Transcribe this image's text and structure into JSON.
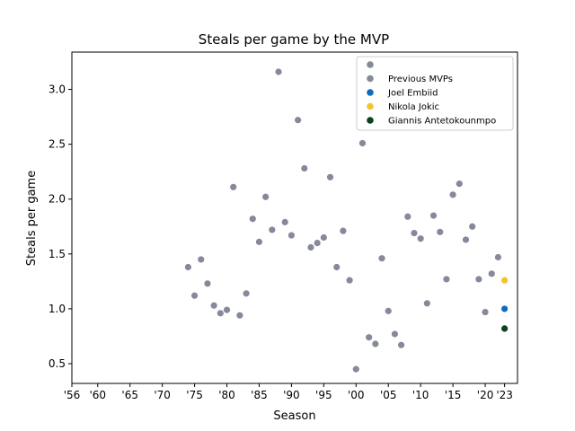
{
  "chart_data": {
    "type": "scatter",
    "title": "Steals per game by the MVP",
    "xlabel": "Season",
    "ylabel": "Steals per game",
    "xlim": [
      1956,
      2025
    ],
    "ylim": [
      0.32,
      3.34
    ],
    "x_ticks": [
      {
        "value": 1956,
        "label": "'56"
      },
      {
        "value": 1960,
        "label": "'60"
      },
      {
        "value": 1965,
        "label": "'65"
      },
      {
        "value": 1970,
        "label": "'70"
      },
      {
        "value": 1975,
        "label": "'75"
      },
      {
        "value": 1980,
        "label": "'80"
      },
      {
        "value": 1985,
        "label": "'85"
      },
      {
        "value": 1990,
        "label": "'90"
      },
      {
        "value": 1995,
        "label": "'95"
      },
      {
        "value": 2000,
        "label": "'00"
      },
      {
        "value": 2005,
        "label": "'05"
      },
      {
        "value": 2010,
        "label": "'10"
      },
      {
        "value": 2015,
        "label": "'15"
      },
      {
        "value": 2020,
        "label": "'20"
      },
      {
        "value": 2023,
        "label": "'23"
      }
    ],
    "y_ticks": [
      {
        "value": 0.5,
        "label": "0.5"
      },
      {
        "value": 1.0,
        "label": "1.0"
      },
      {
        "value": 1.5,
        "label": "1.5"
      },
      {
        "value": 2.0,
        "label": "2.0"
      },
      {
        "value": 2.5,
        "label": "2.5"
      },
      {
        "value": 3.0,
        "label": "3.0"
      }
    ],
    "grid": false,
    "legend_position": "top-right",
    "series": [
      {
        "name": "",
        "color": "#848a9a",
        "points": []
      },
      {
        "name": "Previous MVPs",
        "color": "#848a9a",
        "points": [
          [
            1974,
            1.38
          ],
          [
            1975,
            1.12
          ],
          [
            1976,
            1.45
          ],
          [
            1977,
            1.23
          ],
          [
            1978,
            1.03
          ],
          [
            1979,
            0.96
          ],
          [
            1980,
            0.99
          ],
          [
            1981,
            2.11
          ],
          [
            1982,
            0.94
          ],
          [
            1983,
            1.14
          ],
          [
            1984,
            1.82
          ],
          [
            1985,
            1.61
          ],
          [
            1986,
            2.02
          ],
          [
            1987,
            1.72
          ],
          [
            1988,
            3.16
          ],
          [
            1989,
            1.79
          ],
          [
            1990,
            1.67
          ],
          [
            1991,
            2.72
          ],
          [
            1992,
            2.28
          ],
          [
            1993,
            1.56
          ],
          [
            1994,
            1.6
          ],
          [
            1995,
            1.65
          ],
          [
            1996,
            2.2
          ],
          [
            1997,
            1.38
          ],
          [
            1998,
            1.71
          ],
          [
            1999,
            1.26
          ],
          [
            2000,
            0.45
          ],
          [
            2001,
            2.51
          ],
          [
            2002,
            0.74
          ],
          [
            2003,
            0.68
          ],
          [
            2004,
            1.46
          ],
          [
            2005,
            0.98
          ],
          [
            2006,
            0.77
          ],
          [
            2007,
            0.67
          ],
          [
            2008,
            1.84
          ],
          [
            2009,
            1.69
          ],
          [
            2010,
            1.64
          ],
          [
            2011,
            1.05
          ],
          [
            2012,
            1.85
          ],
          [
            2013,
            1.7
          ],
          [
            2014,
            1.27
          ],
          [
            2015,
            2.04
          ],
          [
            2016,
            2.14
          ],
          [
            2017,
            1.63
          ],
          [
            2018,
            1.75
          ],
          [
            2019,
            1.27
          ],
          [
            2020,
            0.97
          ],
          [
            2021,
            1.32
          ],
          [
            2022,
            1.47
          ]
        ]
      },
      {
        "name": "Joel Embiid",
        "color": "#0f6bbf",
        "points": [
          [
            2023,
            1.0
          ]
        ]
      },
      {
        "name": "Nikola Jokic",
        "color": "#f5c330",
        "points": [
          [
            2023,
            1.26
          ]
        ]
      },
      {
        "name": "Giannis Antetokounmpo",
        "color": "#0c4220",
        "points": [
          [
            2023,
            0.82
          ]
        ]
      }
    ]
  }
}
